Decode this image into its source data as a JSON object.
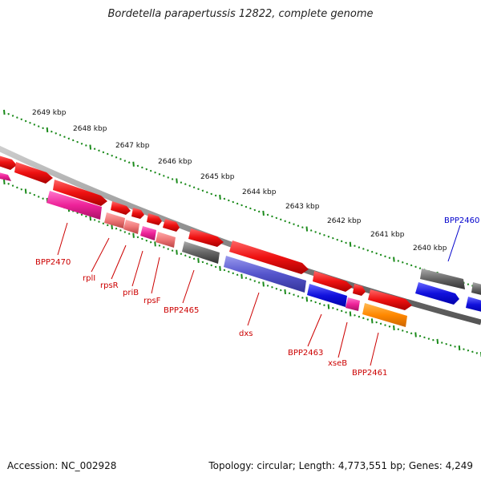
{
  "title": "Bordetella parapertussis 12822, complete genome",
  "accession": "Accession: NC_002928",
  "summary": "Topology: circular; Length: 4,773,551 bp; Genes: 4,249",
  "ticks": [
    {
      "label": "2649 kbp"
    },
    {
      "label": "2648 kbp"
    },
    {
      "label": "2647 kbp"
    },
    {
      "label": "2646 kbp"
    },
    {
      "label": "2645 kbp"
    },
    {
      "label": "2644 kbp"
    },
    {
      "label": "2643 kbp"
    },
    {
      "label": "2642 kbp"
    },
    {
      "label": "2641 kbp"
    },
    {
      "label": "2640 kbp"
    }
  ],
  "gene_labels": [
    {
      "name": "BPP2470",
      "color": "#cc0000"
    },
    {
      "name": "rplI",
      "color": "#cc0000"
    },
    {
      "name": "rpsR",
      "color": "#cc0000"
    },
    {
      "name": "priB",
      "color": "#cc0000"
    },
    {
      "name": "rpsF",
      "color": "#cc0000"
    },
    {
      "name": "BPP2465",
      "color": "#cc0000"
    },
    {
      "name": "dxs",
      "color": "#cc0000"
    },
    {
      "name": "BPP2463",
      "color": "#cc0000"
    },
    {
      "name": "xseB",
      "color": "#cc0000"
    },
    {
      "name": "BPP2461",
      "color": "#cc0000"
    },
    {
      "name": "BPP2460",
      "color": "#0000cc"
    }
  ],
  "colors": {
    "backbone": "#8c8c8c",
    "tick_marks": "#1a8a1a",
    "gene_red": "#ee1111",
    "gene_pink": "#ee2299",
    "gene_salmon": "#ee7777",
    "gene_gray": "#666666",
    "gene_blue": "#1111dd",
    "gene_orange": "#ff8800"
  }
}
